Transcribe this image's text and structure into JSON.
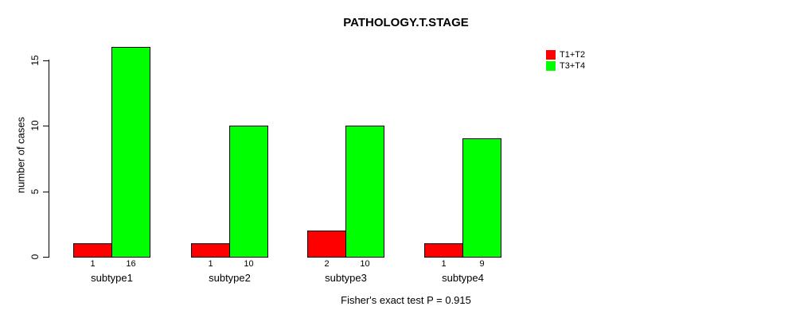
{
  "title": "PATHOLOGY.T.STAGE",
  "footer": "Fisher's exact test P = 0.915",
  "legend": [
    {
      "label": "T1+T2",
      "color": "#ff0000"
    },
    {
      "label": "T3+T4",
      "color": "#00ff00"
    }
  ],
  "colors": {
    "bar_red": "#ff0000",
    "bar_green": "#00ff00",
    "axis": "#000000",
    "background": "#ffffff"
  },
  "chart_data": {
    "type": "bar",
    "title": "PATHOLOGY.T.STAGE",
    "ylabel": "number of cases",
    "xlabel": "",
    "categories": [
      "subtype1",
      "subtype2",
      "subtype3",
      "subtype4"
    ],
    "series": [
      {
        "name": "T1+T2",
        "color": "#ff0000",
        "values": [
          1,
          1,
          2,
          1
        ]
      },
      {
        "name": "T3+T4",
        "color": "#00ff00",
        "values": [
          16,
          10,
          10,
          9
        ]
      }
    ],
    "bar_value_labels_shown": true,
    "yticks": [
      0,
      5,
      10,
      15
    ],
    "ylim": [
      0,
      16.5
    ],
    "grid": false,
    "legend_position": "top-right",
    "annotation": "Fisher's exact test P = 0.915"
  }
}
